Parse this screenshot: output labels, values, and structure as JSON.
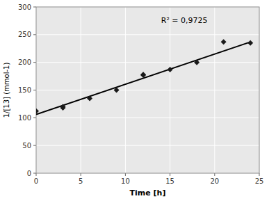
{
  "chart_data": {
    "type": "scatter",
    "xlabel": "Time [h]",
    "ylabel": "1/[13] (mmol-1)",
    "annotation": "R² = 0,9725",
    "series": [
      {
        "type": "scatter",
        "marker": "diamond",
        "color": "#1a1a1a",
        "x": [
          0,
          3,
          3,
          6,
          9,
          12,
          12,
          15,
          18,
          21,
          24
        ],
        "values": [
          112,
          118,
          120,
          135,
          150,
          177,
          178,
          187,
          200,
          237,
          235
        ]
      },
      {
        "type": "line",
        "color": "#000000",
        "x": [
          0,
          24
        ],
        "values": [
          106,
          236.8
        ]
      }
    ],
    "xlim": [
      0,
      25
    ],
    "ylim": [
      0,
      300
    ],
    "xticks": [
      0,
      5,
      10,
      15,
      20,
      25
    ],
    "yticks": [
      0,
      50,
      100,
      150,
      200,
      250,
      300
    ],
    "grid": true
  }
}
